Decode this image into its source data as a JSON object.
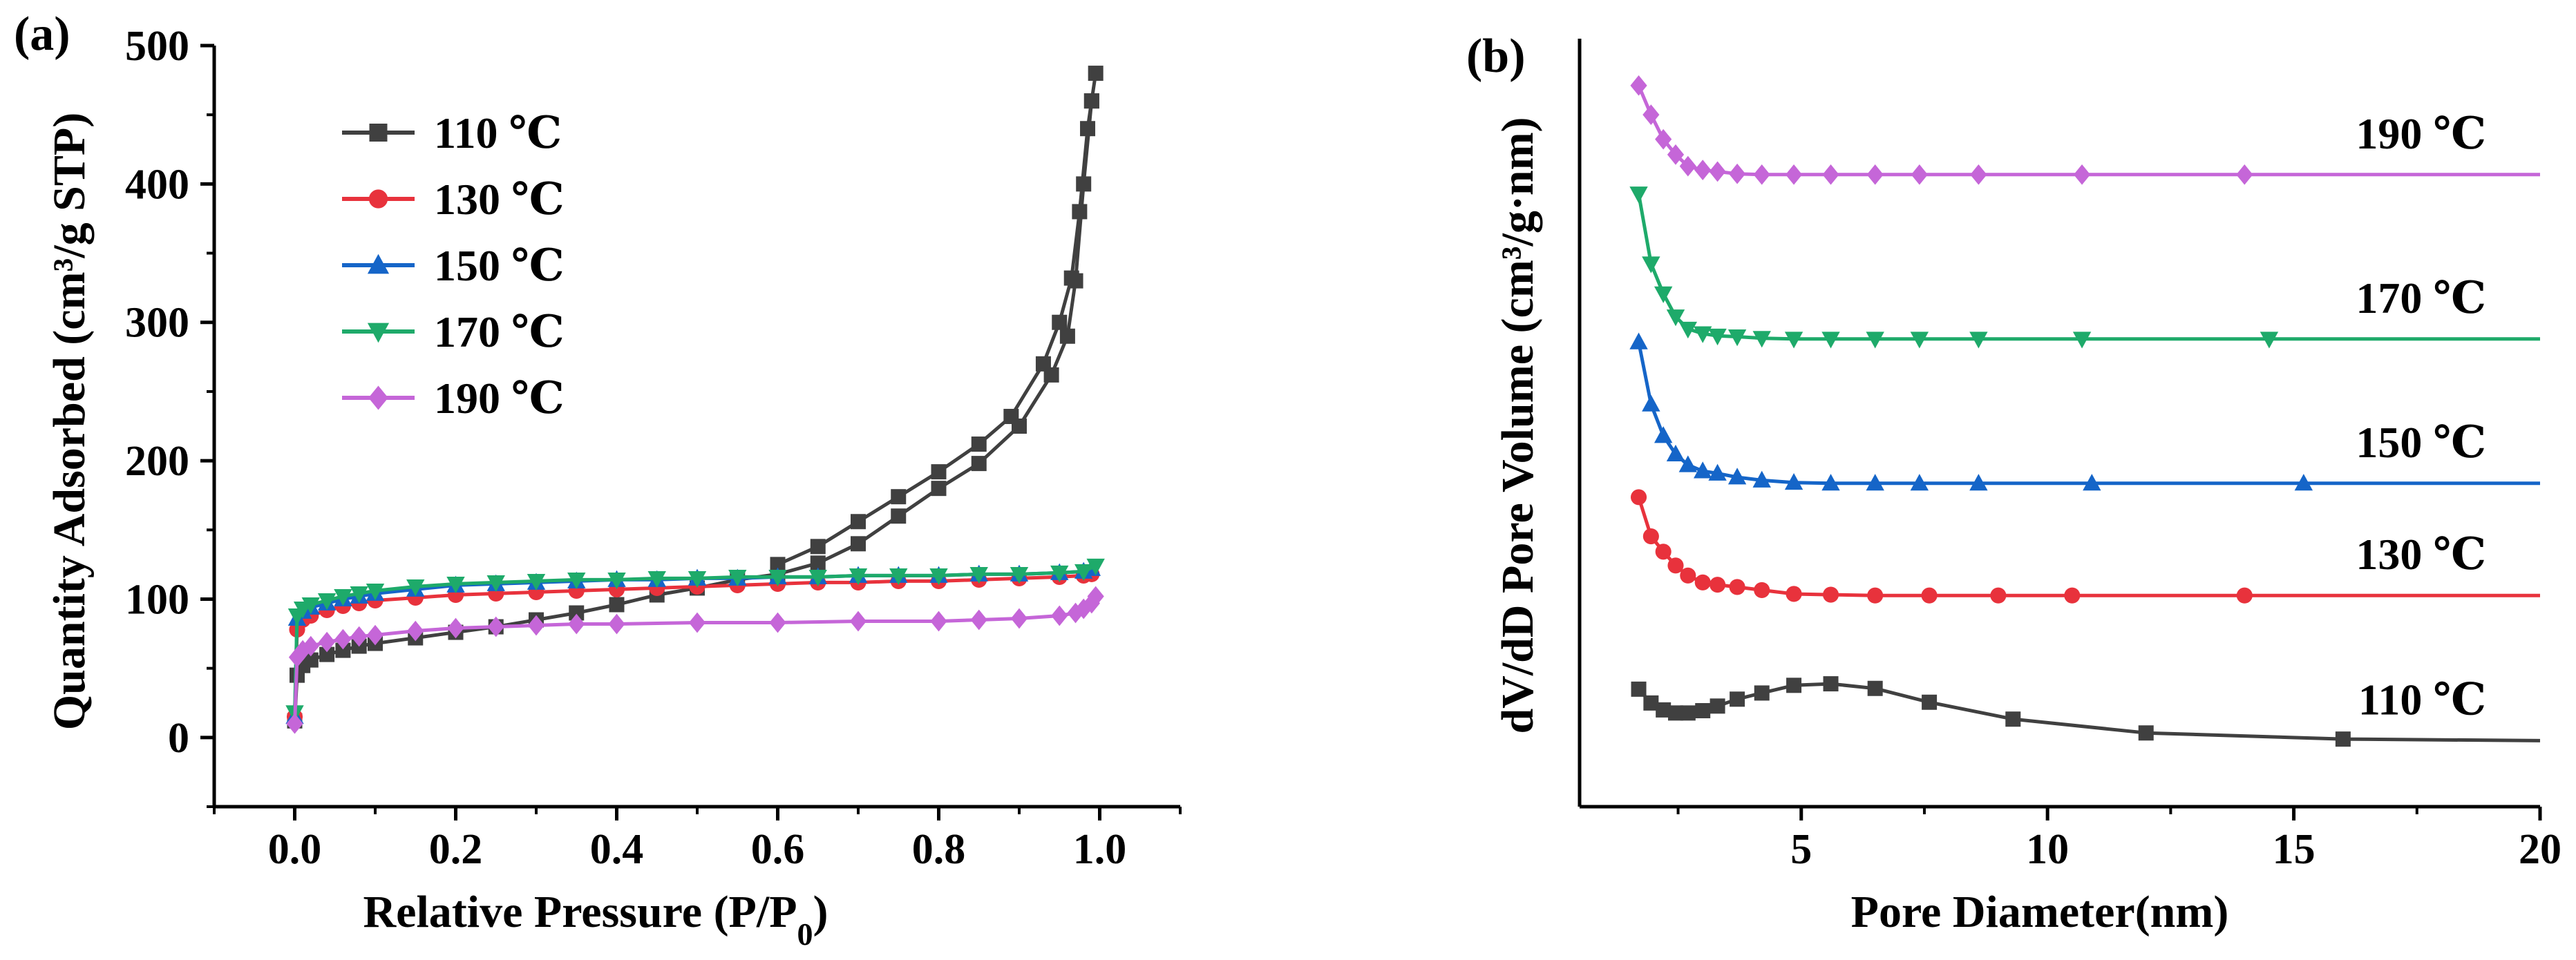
{
  "chart_data": [
    {
      "panel": "(a)",
      "type": "line",
      "xlabel": "Relative Pressure (P/P",
      "xlabel_sub": "0",
      "xlabel_end": ")",
      "ylabel": "Quantity Adsorbed (cm³/g STP)",
      "xlim": [
        -0.1,
        1.1
      ],
      "ylim": [
        -50,
        500
      ],
      "xticks": [
        0.0,
        0.2,
        0.4,
        0.6,
        0.8,
        1.0
      ],
      "xtick_labels": [
        "0.0",
        "0.2",
        "0.4",
        "0.6",
        "0.8",
        "1.0"
      ],
      "yticks": [
        0,
        100,
        200,
        300,
        400,
        500
      ],
      "ytick_labels": [
        "0",
        "100",
        "200",
        "300",
        "400",
        "500"
      ],
      "legend_position": "top-left",
      "series": [
        {
          "name": "110 ℃",
          "color": "#404040",
          "marker": "square",
          "x": [
            0.0,
            0.003,
            0.01,
            0.02,
            0.04,
            0.06,
            0.08,
            0.1,
            0.15,
            0.2,
            0.25,
            0.3,
            0.35,
            0.4,
            0.45,
            0.5,
            0.55,
            0.6,
            0.65,
            0.7,
            0.75,
            0.8,
            0.85,
            0.9,
            0.94,
            0.96,
            0.97,
            0.98,
            0.99,
            0.995,
            0.99,
            0.985,
            0.975,
            0.965,
            0.95,
            0.93,
            0.89,
            0.85,
            0.8,
            0.75,
            0.7,
            0.65,
            0.6
          ],
          "y": [
            12,
            45,
            52,
            56,
            60,
            63,
            66,
            68,
            72,
            76,
            80,
            85,
            90,
            96,
            103,
            108,
            114,
            118,
            126,
            140,
            160,
            180,
            198,
            225,
            262,
            290,
            330,
            400,
            460,
            480,
            460,
            440,
            380,
            332,
            300,
            270,
            232,
            212,
            192,
            174,
            156,
            138,
            125
          ]
        },
        {
          "name": "130 ℃",
          "color": "#e8323c",
          "marker": "circle",
          "x": [
            0.0,
            0.003,
            0.01,
            0.02,
            0.04,
            0.06,
            0.08,
            0.1,
            0.15,
            0.2,
            0.25,
            0.3,
            0.35,
            0.4,
            0.45,
            0.5,
            0.55,
            0.6,
            0.65,
            0.7,
            0.75,
            0.8,
            0.85,
            0.9,
            0.95,
            0.98,
            0.99
          ],
          "y": [
            15,
            78,
            85,
            88,
            92,
            95,
            97,
            99,
            101,
            103,
            104,
            105,
            106,
            107,
            108,
            109,
            110,
            111,
            112,
            112,
            113,
            113,
            114,
            115,
            116,
            117,
            118
          ]
        },
        {
          "name": "150 ℃",
          "color": "#1565c8",
          "marker": "triangle-up",
          "x": [
            0.0,
            0.003,
            0.01,
            0.02,
            0.04,
            0.06,
            0.08,
            0.1,
            0.15,
            0.2,
            0.25,
            0.3,
            0.35,
            0.4,
            0.45,
            0.5,
            0.55,
            0.6,
            0.65,
            0.7,
            0.75,
            0.8,
            0.85,
            0.9,
            0.95,
            0.98,
            0.99
          ],
          "y": [
            15,
            86,
            91,
            94,
            97,
            100,
            102,
            104,
            107,
            110,
            111,
            112,
            113,
            114,
            114,
            115,
            115,
            116,
            116,
            117,
            117,
            117,
            118,
            118,
            119,
            120,
            122
          ]
        },
        {
          "name": "170 ℃",
          "color": "#1eaa6a",
          "marker": "triangle-down",
          "x": [
            0.0,
            0.003,
            0.01,
            0.02,
            0.04,
            0.06,
            0.08,
            0.1,
            0.15,
            0.2,
            0.25,
            0.3,
            0.35,
            0.4,
            0.45,
            0.5,
            0.55,
            0.6,
            0.65,
            0.7,
            0.75,
            0.8,
            0.85,
            0.9,
            0.95,
            0.98,
            0.995
          ],
          "y": [
            18,
            88,
            93,
            96,
            99,
            102,
            104,
            106,
            109,
            111,
            112,
            113,
            114,
            114,
            115,
            115,
            116,
            116,
            116,
            117,
            117,
            117,
            118,
            118,
            119,
            120,
            124
          ]
        },
        {
          "name": "190 ℃",
          "color": "#c566d8",
          "marker": "diamond",
          "x": [
            0.0,
            0.003,
            0.01,
            0.02,
            0.04,
            0.06,
            0.08,
            0.1,
            0.15,
            0.2,
            0.25,
            0.3,
            0.35,
            0.4,
            0.5,
            0.6,
            0.7,
            0.8,
            0.85,
            0.9,
            0.95,
            0.97,
            0.98,
            0.99,
            0.995
          ],
          "y": [
            10,
            58,
            63,
            66,
            69,
            71,
            73,
            74,
            77,
            79,
            80,
            81,
            82,
            82,
            83,
            83,
            84,
            84,
            85,
            86,
            88,
            90,
            93,
            97,
            102
          ]
        }
      ]
    },
    {
      "panel": "(b)",
      "type": "line",
      "xlabel": "Pore Diameter(nm)",
      "ylabel": "dV/dD Pore Volume (cm³/g·nm)",
      "xlim": [
        0.5,
        20
      ],
      "ylim": [
        0,
        100
      ],
      "yaxis_ticks_shown": false,
      "xticks": [
        5,
        10,
        15,
        20
      ],
      "xtick_labels": [
        "5",
        "10",
        "15",
        "20"
      ],
      "series": [
        {
          "name": "110 ℃",
          "color": "#404040",
          "marker": "square",
          "x": [
            1.7,
            1.95,
            2.2,
            2.45,
            2.7,
            3.0,
            3.3,
            3.7,
            4.2,
            4.85,
            5.6,
            6.5,
            7.6,
            9.3,
            12.0,
            16.0,
            20.0
          ],
          "y": [
            15.3,
            13.5,
            12.6,
            12.2,
            12.2,
            12.5,
            13.1,
            14.0,
            14.8,
            15.8,
            16.0,
            15.4,
            13.6,
            11.4,
            9.6,
            8.8,
            8.6
          ]
        },
        {
          "name": "130 ℃",
          "color": "#e8323c",
          "marker": "circle",
          "x": [
            1.7,
            1.95,
            2.2,
            2.45,
            2.7,
            3.0,
            3.3,
            3.7,
            4.2,
            4.85,
            5.6,
            6.5,
            7.6,
            9.0,
            10.5,
            14.0,
            20.0
          ],
          "y": [
            40.3,
            35.2,
            33.2,
            31.4,
            30.1,
            29.2,
            28.9,
            28.6,
            28.2,
            27.7,
            27.6,
            27.5,
            27.5,
            27.5,
            27.5,
            27.5,
            27.5
          ]
        },
        {
          "name": "150 ℃",
          "color": "#1565c8",
          "marker": "triangle-up",
          "x": [
            1.7,
            1.95,
            2.2,
            2.45,
            2.7,
            3.0,
            3.3,
            3.7,
            4.2,
            4.85,
            5.6,
            6.5,
            7.4,
            8.6,
            10.9,
            15.2,
            20.0
          ],
          "y": [
            60.5,
            52.4,
            48.3,
            45.9,
            44.5,
            43.7,
            43.4,
            42.9,
            42.5,
            42.2,
            42.1,
            42.1,
            42.1,
            42.1,
            42.1,
            42.1,
            42.1
          ]
        },
        {
          "name": "170 ℃",
          "color": "#1eaa6a",
          "marker": "triangle-down",
          "x": [
            1.7,
            1.95,
            2.2,
            2.45,
            2.7,
            3.0,
            3.3,
            3.7,
            4.2,
            4.85,
            5.6,
            6.5,
            7.4,
            8.6,
            10.7,
            14.5,
            20.0
          ],
          "y": [
            79.8,
            70.7,
            66.8,
            63.8,
            62.2,
            61.6,
            61.3,
            61.2,
            61.0,
            60.9,
            60.9,
            60.9,
            60.9,
            60.9,
            60.9,
            60.9,
            60.9
          ]
        },
        {
          "name": "190 ℃",
          "color": "#c566d8",
          "marker": "diamond",
          "x": [
            1.7,
            1.95,
            2.2,
            2.45,
            2.7,
            3.0,
            3.3,
            3.7,
            4.2,
            4.85,
            5.6,
            6.5,
            7.4,
            8.6,
            10.7,
            14.0,
            20.0
          ],
          "y": [
            93.9,
            90.1,
            86.9,
            84.9,
            83.4,
            82.9,
            82.7,
            82.4,
            82.3,
            82.3,
            82.3,
            82.3,
            82.3,
            82.3,
            82.3,
            82.3,
            82.3
          ]
        }
      ]
    }
  ]
}
